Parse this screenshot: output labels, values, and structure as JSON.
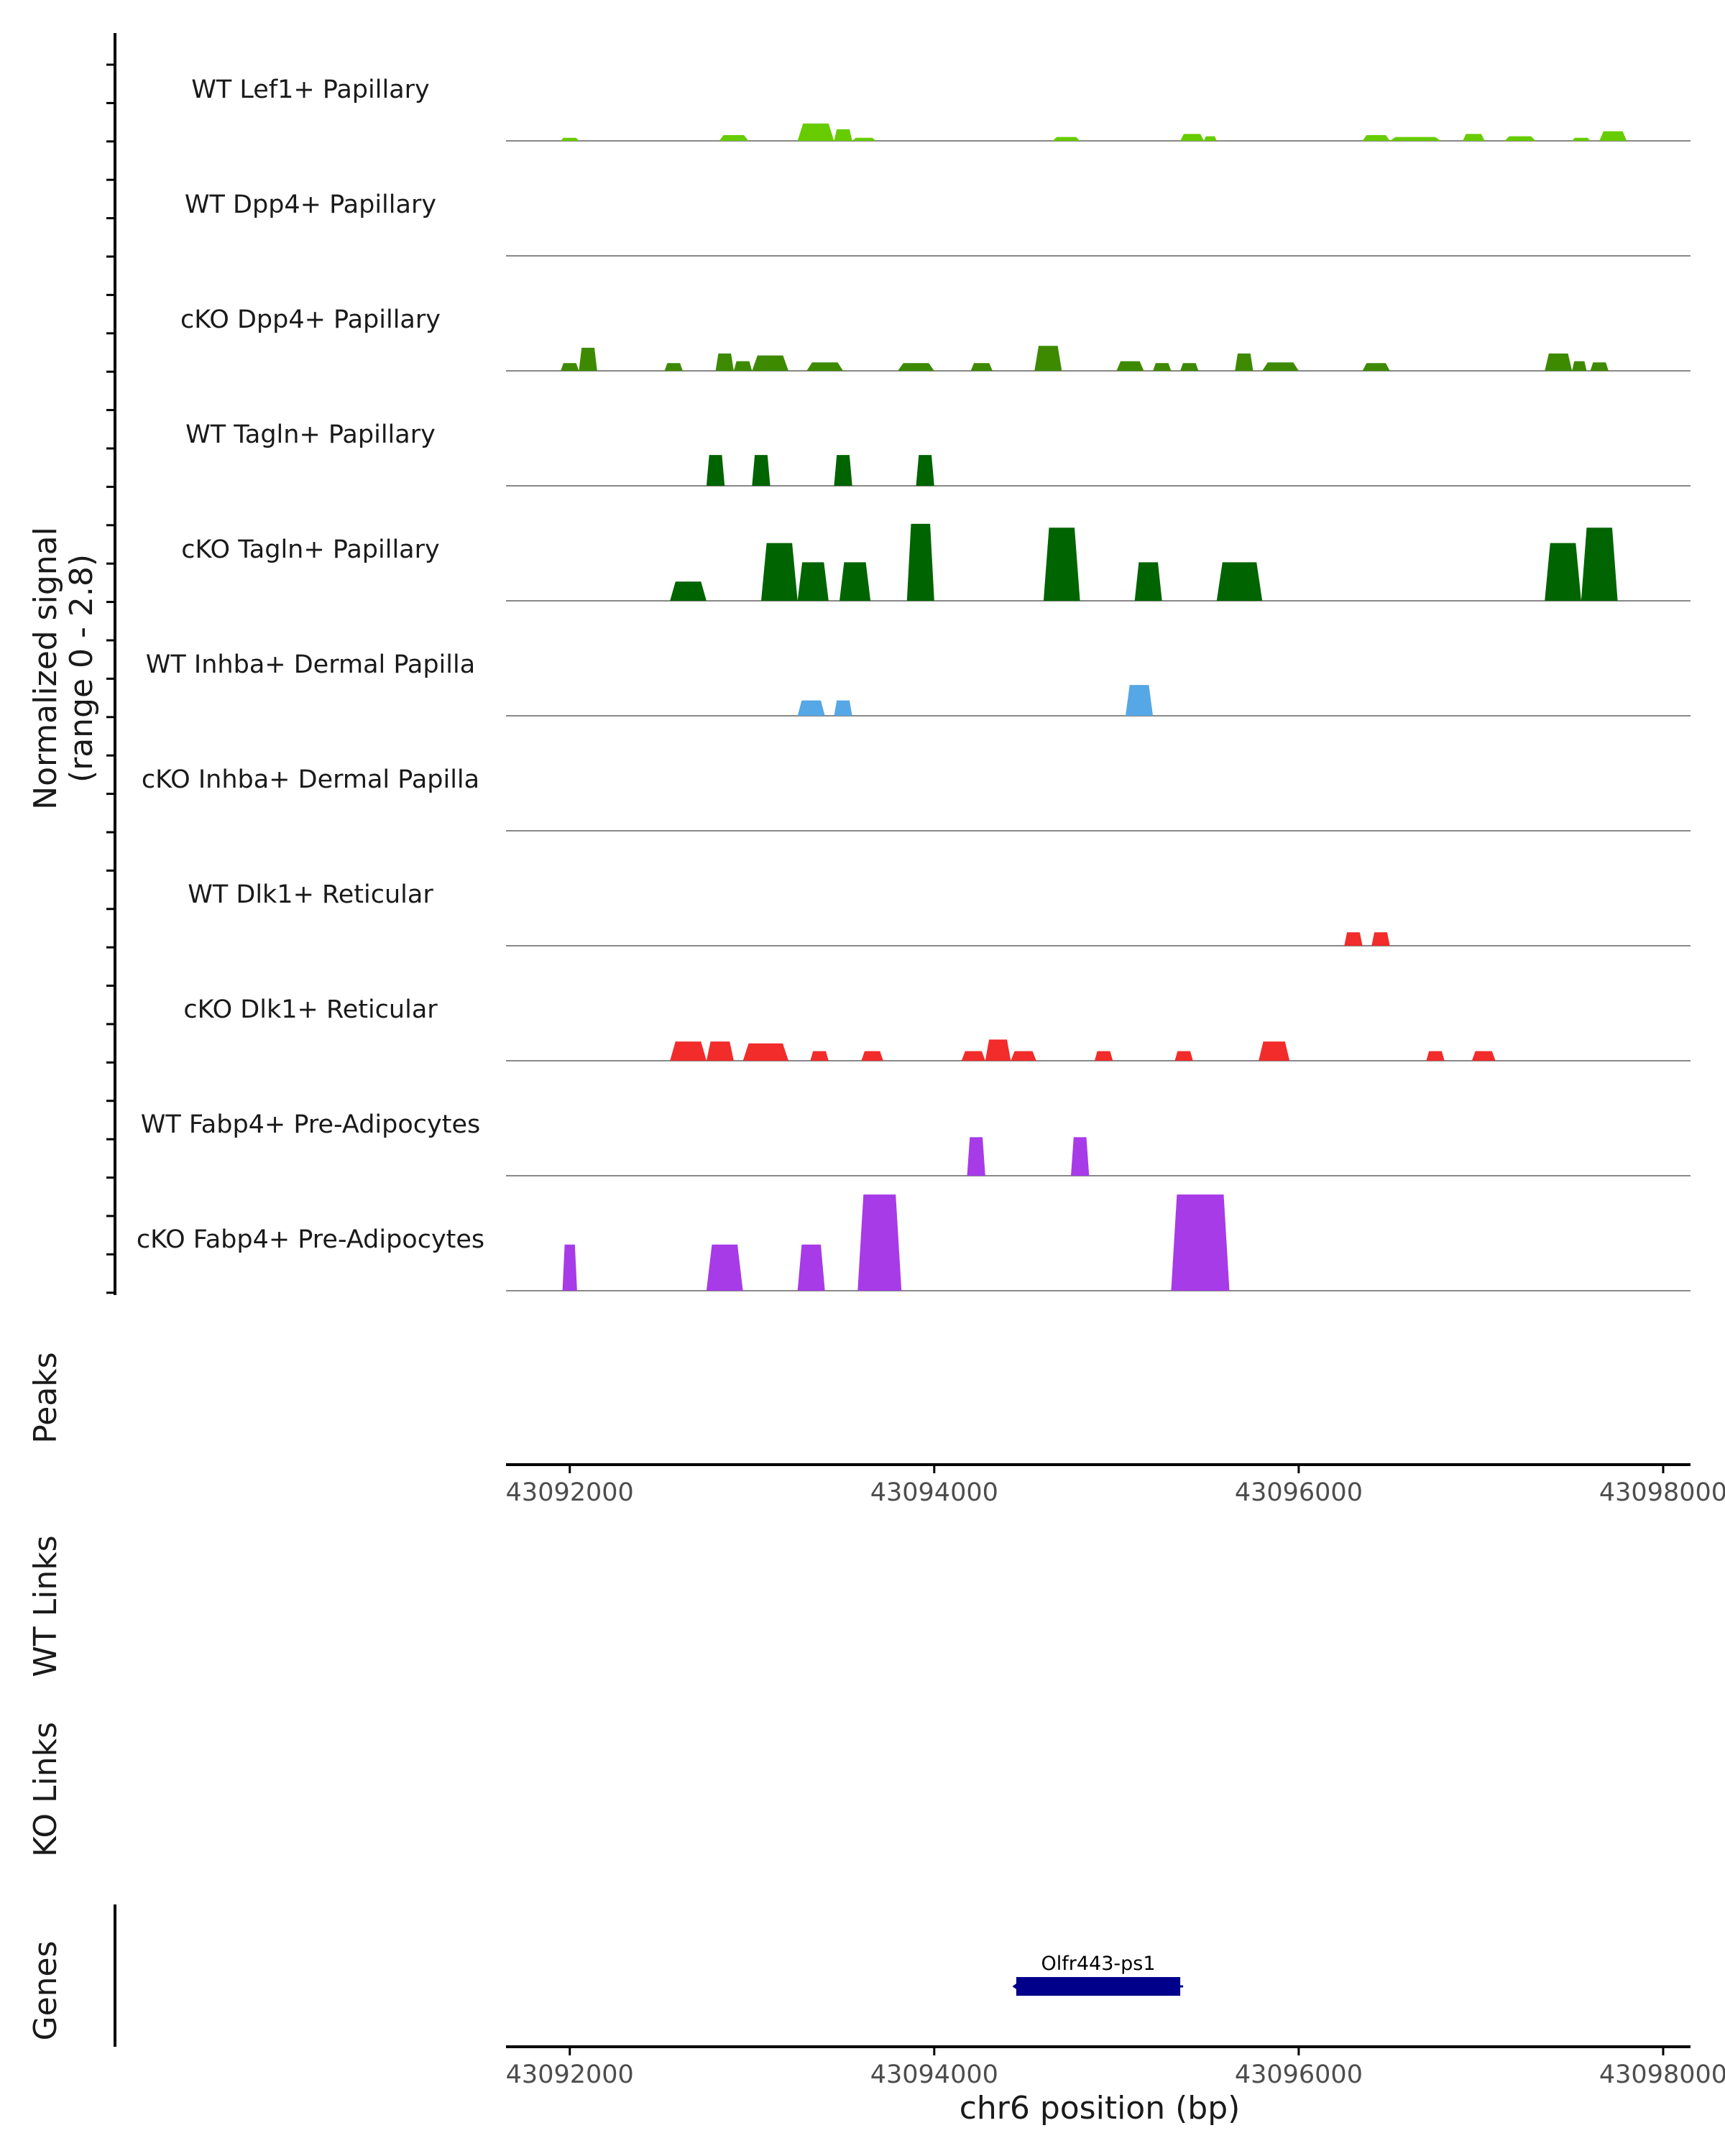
{
  "chart_data": {
    "type": "area",
    "title": "",
    "xlabel": "chr6 position (bp)",
    "ylabel": "Normalized signal (range 0 - 2.8)",
    "ylabel_lines": [
      "Normalized signal",
      "(range 0 - 2.8)"
    ],
    "ylim": [
      0,
      2.8
    ],
    "xlim": [
      43091650,
      43098150
    ],
    "x_ticks": [
      43092000,
      43094000,
      43096000,
      43098000
    ],
    "x_tick_labels": [
      "43092000",
      "43094000",
      "43096000",
      "43098000"
    ],
    "series": [
      {
        "name": "WT Lef1+ Papillary",
        "color": "#66cc00",
        "peaks": [
          [
            43091950,
            43092050,
            0.08
          ],
          [
            43092820,
            43092980,
            0.15
          ],
          [
            43093250,
            43093450,
            0.45
          ],
          [
            43093450,
            43093550,
            0.3
          ],
          [
            43093550,
            43093680,
            0.08
          ],
          [
            43094650,
            43094800,
            0.1
          ],
          [
            43095350,
            43095480,
            0.18
          ],
          [
            43095480,
            43095550,
            0.12
          ],
          [
            43096350,
            43096500,
            0.15
          ],
          [
            43096500,
            43096780,
            0.1
          ],
          [
            43096900,
            43097020,
            0.18
          ],
          [
            43097130,
            43097300,
            0.12
          ],
          [
            43097500,
            43097600,
            0.08
          ],
          [
            43097650,
            43097800,
            0.25
          ]
        ]
      },
      {
        "name": "WT Dpp4+ Papillary",
        "color": "#66cc00",
        "peaks": []
      },
      {
        "name": "cKO Dpp4+ Papillary",
        "color": "#3d8a00",
        "peaks": [
          [
            43091950,
            43092050,
            0.2
          ],
          [
            43092050,
            43092150,
            0.6
          ],
          [
            43092520,
            43092620,
            0.2
          ],
          [
            43092800,
            43092900,
            0.45
          ],
          [
            43092900,
            43093000,
            0.25
          ],
          [
            43093000,
            43093200,
            0.4
          ],
          [
            43093300,
            43093500,
            0.22
          ],
          [
            43093800,
            43094000,
            0.2
          ],
          [
            43094200,
            43094320,
            0.2
          ],
          [
            43094550,
            43094700,
            0.65
          ],
          [
            43095000,
            43095150,
            0.25
          ],
          [
            43095200,
            43095300,
            0.2
          ],
          [
            43095350,
            43095450,
            0.2
          ],
          [
            43095650,
            43095750,
            0.45
          ],
          [
            43095800,
            43096000,
            0.22
          ],
          [
            43096350,
            43096500,
            0.2
          ],
          [
            43097350,
            43097500,
            0.45
          ],
          [
            43097500,
            43097580,
            0.25
          ],
          [
            43097600,
            43097700,
            0.22
          ]
        ]
      },
      {
        "name": "WT Tagln+ Papillary",
        "color": "#006400",
        "peaks": [
          [
            43092750,
            43092850,
            0.8
          ],
          [
            43093000,
            43093100,
            0.8
          ],
          [
            43093450,
            43093550,
            0.8
          ],
          [
            43093900,
            43094000,
            0.8
          ]
        ]
      },
      {
        "name": "cKO Tagln+ Papillary",
        "color": "#006400",
        "peaks": [
          [
            43092550,
            43092750,
            0.5
          ],
          [
            43093050,
            43093250,
            1.5
          ],
          [
            43093250,
            43093420,
            1.0
          ],
          [
            43093480,
            43093650,
            1.0
          ],
          [
            43093850,
            43094000,
            2.0
          ],
          [
            43094600,
            43094800,
            1.9
          ],
          [
            43095100,
            43095250,
            1.0
          ],
          [
            43095550,
            43095800,
            1.0
          ],
          [
            43097350,
            43097550,
            1.5
          ],
          [
            43097550,
            43097750,
            1.9
          ]
        ]
      },
      {
        "name": "WT Inhba+ Dermal Papilla",
        "color": "#56a7e6",
        "peaks": [
          [
            43093250,
            43093400,
            0.4
          ],
          [
            43093450,
            43093550,
            0.4
          ],
          [
            43095050,
            43095200,
            0.8
          ]
        ]
      },
      {
        "name": "cKO Inhba+ Dermal Papilla",
        "color": "#56a7e6",
        "peaks": []
      },
      {
        "name": "WT Dlk1+ Reticular",
        "color": "#f22b2b",
        "peaks": [
          [
            43096250,
            43096350,
            0.35
          ],
          [
            43096400,
            43096500,
            0.35
          ]
        ]
      },
      {
        "name": "cKO Dlk1+ Reticular",
        "color": "#f22b2b",
        "peaks": [
          [
            43092550,
            43092750,
            0.5
          ],
          [
            43092750,
            43092900,
            0.5
          ],
          [
            43092950,
            43093200,
            0.45
          ],
          [
            43093320,
            43093420,
            0.25
          ],
          [
            43093600,
            43093720,
            0.25
          ],
          [
            43094150,
            43094280,
            0.25
          ],
          [
            43094280,
            43094420,
            0.55
          ],
          [
            43094420,
            43094560,
            0.25
          ],
          [
            43094880,
            43094980,
            0.25
          ],
          [
            43095320,
            43095420,
            0.25
          ],
          [
            43095780,
            43095950,
            0.5
          ],
          [
            43096700,
            43096800,
            0.25
          ],
          [
            43096950,
            43097080,
            0.25
          ]
        ]
      },
      {
        "name": "WT Fabp4+ Pre-Adipocytes",
        "color": "#a73be8",
        "peaks": [
          [
            43094180,
            43094280,
            1.0
          ],
          [
            43094750,
            43094850,
            1.0
          ]
        ]
      },
      {
        "name": "cKO Fabp4+ Pre-Adipocytes",
        "color": "#a73be8",
        "peaks": [
          [
            43091960,
            43092040,
            1.2
          ],
          [
            43092750,
            43092950,
            1.2
          ],
          [
            43093250,
            43093400,
            1.2
          ],
          [
            43093580,
            43093820,
            2.5
          ],
          [
            43095300,
            43095620,
            2.5
          ]
        ]
      }
    ],
    "tracks": {
      "peaks_label": "Peaks",
      "wt_links_label": "WT Links",
      "ko_links_label": "KO Links",
      "genes_label": "Genes"
    },
    "genes": [
      {
        "name": "Olfr443-ps1",
        "start": 43094450,
        "end": 43095350,
        "strand": "-",
        "color": "#00008b"
      }
    ]
  }
}
